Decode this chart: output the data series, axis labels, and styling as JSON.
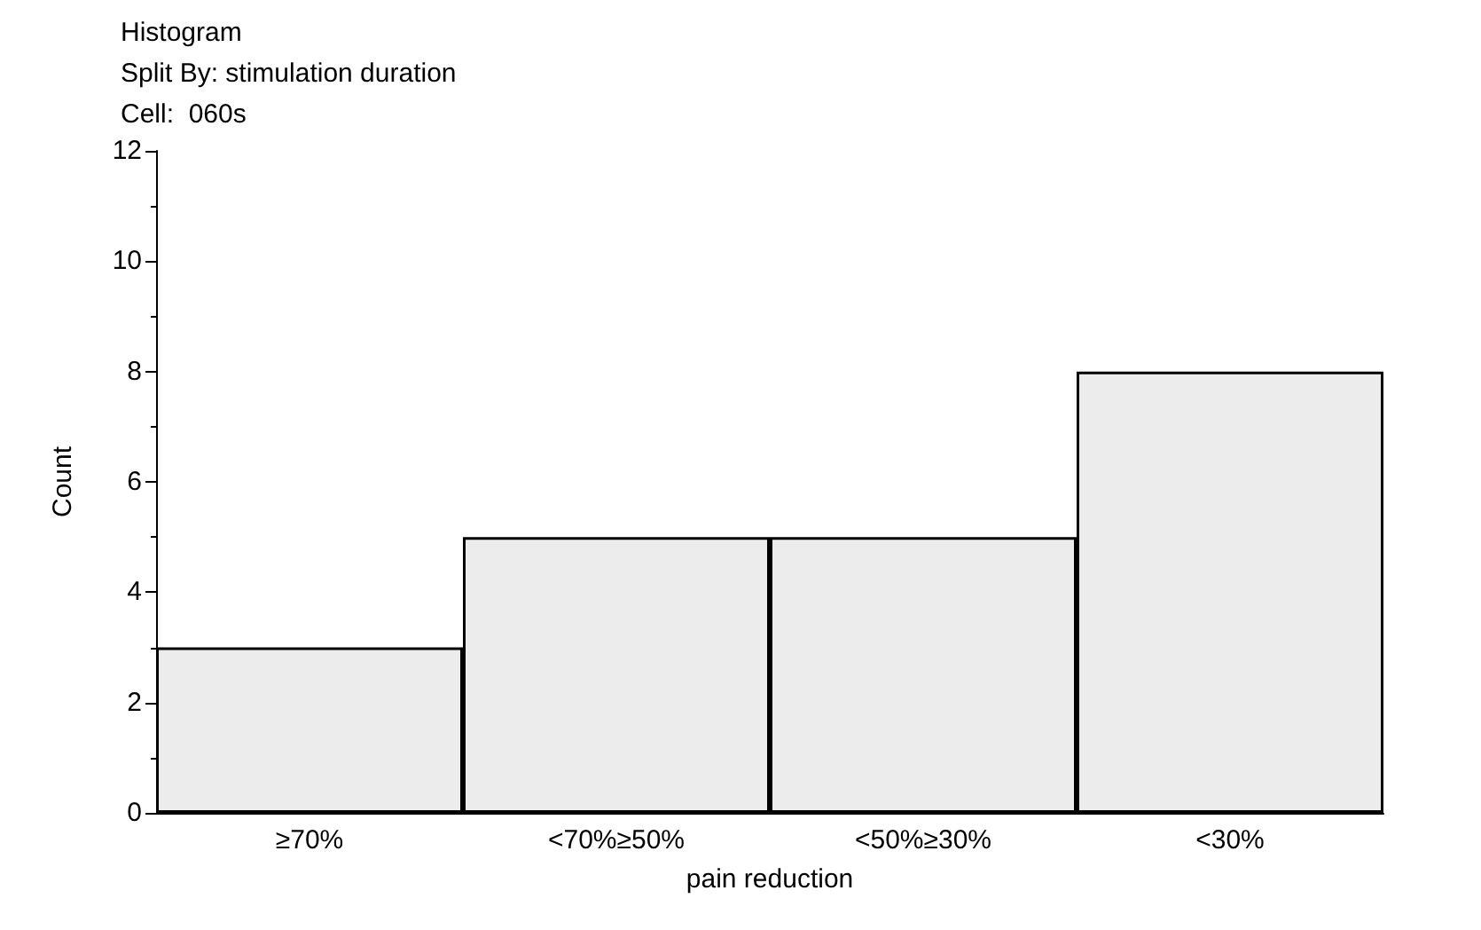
{
  "chart_data": {
    "type": "bar",
    "title": "Histogram",
    "subtitle": "Split By: stimulation duration",
    "annotations": [
      "Cell:  060s"
    ],
    "xlabel": "pain reduction",
    "ylabel": "Count",
    "categories": [
      "≥70%",
      "<70%≥50%",
      "<50%≥30%",
      "<30%"
    ],
    "values": [
      3,
      5,
      5,
      8
    ],
    "color": "#ececec",
    "ylim": [
      0,
      12
    ],
    "yticks": [
      0,
      2,
      4,
      6,
      8,
      10,
      12
    ],
    "grid": false
  }
}
